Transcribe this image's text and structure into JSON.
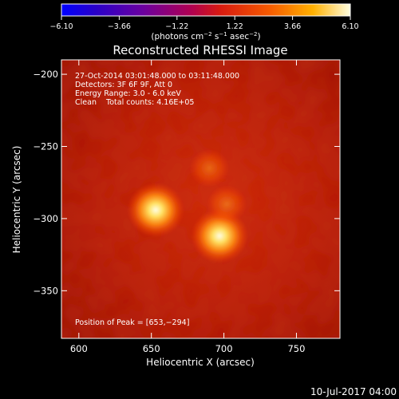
{
  "colorbar": {
    "ticks": [
      "−6.10",
      "−3.66",
      "−1.22",
      "1.22",
      "3.66",
      "6.10"
    ],
    "tick_values": [
      -6.1,
      -3.66,
      -1.22,
      1.22,
      3.66,
      6.1
    ],
    "range": [
      -6.1,
      6.1
    ],
    "unit_parts": [
      "(photons cm",
      "−2",
      " s",
      "−1",
      " asec",
      "−2",
      ")"
    ]
  },
  "plot": {
    "title": "Reconstructed RHESSI Image",
    "info": [
      "27-Oct-2014 03:01:48.000 to 03:11:48.000",
      "Detectors: 3F 6F 9F, Att 0",
      "Energy Range: 3.0 - 6.0 keV",
      "Clean    Total counts: 4.16E+05"
    ],
    "peak_text": "Position of Peak = [653,−294]"
  },
  "footer": {
    "date": "10-Jul-2017 04:00"
  },
  "chart_data": {
    "type": "heatmap",
    "title": "Reconstructed RHESSI Image",
    "xlabel": "Heliocentric X (arcsec)",
    "ylabel": "Heliocentric Y (arcsec)",
    "xlim": [
      588,
      780
    ],
    "ylim": [
      -383,
      -190
    ],
    "xticks": [
      600,
      650,
      700,
      750
    ],
    "xtick_labels": [
      "600",
      "650",
      "700",
      "750"
    ],
    "yticks": [
      -200,
      -250,
      -300,
      -350
    ],
    "ytick_labels": [
      "−200",
      "−250",
      "−300",
      "−350"
    ],
    "colormap": "red-temperature",
    "colorbar_range": [
      -6.1,
      6.1
    ],
    "peak": [
      653,
      -294
    ],
    "sources": [
      {
        "x": 653,
        "y": -294,
        "relative_intensity": 1.0
      },
      {
        "x": 697,
        "y": -312,
        "relative_intensity": 0.9
      },
      {
        "x": 702,
        "y": -290,
        "relative_intensity": 0.35
      },
      {
        "x": 690,
        "y": -265,
        "relative_intensity": 0.3
      }
    ]
  }
}
